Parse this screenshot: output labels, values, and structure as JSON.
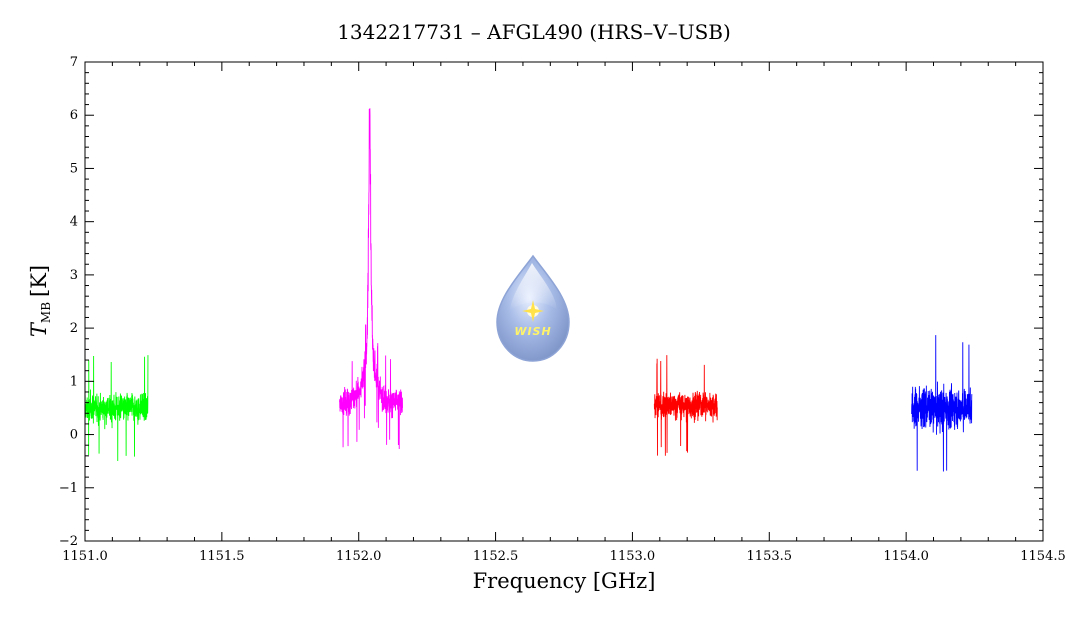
{
  "chart_data": {
    "type": "line",
    "title": "1342217731 – AFGL490 (HRS–V–USB)",
    "xlabel": "Frequency [GHz]",
    "ylabel": {
      "symbol": "T",
      "subscript": "MB",
      "unit": "[K]"
    },
    "xlim": [
      1151.0,
      1154.5
    ],
    "ylim": [
      -2,
      7
    ],
    "x_ticks": [
      "1151.0",
      "1151.5",
      "1152.0",
      "1152.5",
      "1153.0",
      "1153.5",
      "1154.0",
      "1154.5"
    ],
    "y_ticks": [
      "−2",
      "−1",
      "0",
      "1",
      "2",
      "3",
      "4",
      "5",
      "6",
      "7"
    ],
    "grid": false,
    "logo_text": "WISH",
    "series": [
      {
        "color": "#00ff00",
        "x_range": [
          1151.0,
          1151.23
        ],
        "baseline": 0.5,
        "noise_min": -0.7,
        "noise_max": 1.5
      },
      {
        "color": "#ff00ff",
        "x_range": [
          1151.93,
          1152.16
        ],
        "baseline": 0.6,
        "noise_min": -0.3,
        "noise_max": 2.0,
        "peak": {
          "x": 1152.04,
          "y": 6.15
        }
      },
      {
        "color": "#ff0000",
        "x_range": [
          1153.08,
          1153.31
        ],
        "baseline": 0.55,
        "noise_min": -0.4,
        "noise_max": 1.6
      },
      {
        "color": "#0000ff",
        "x_range": [
          1154.02,
          1154.24
        ],
        "baseline": 0.5,
        "noise_min": -0.95,
        "noise_max": 1.9
      }
    ]
  }
}
